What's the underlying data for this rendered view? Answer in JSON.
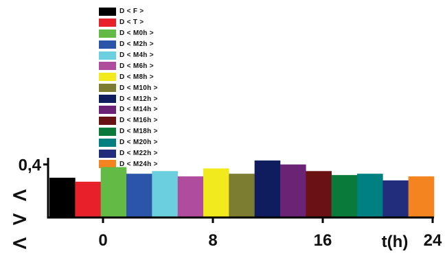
{
  "chart_data": {
    "type": "bar",
    "title": "",
    "xlabel": "t(h)",
    "ylabel_glyphs": [
      "<",
      ">",
      "<"
    ],
    "ytick_labels": [
      "0,4"
    ],
    "xtick_labels": [
      "0",
      "8",
      "16",
      "24"
    ],
    "categories": [
      "D < F >",
      "D < T >",
      "D < M0h >",
      "D < M2h >",
      "D < M4h >",
      "D < M6h >",
      "D < M8h >",
      "D < M10h >",
      "D < M12h >",
      "D < M14h >",
      "D < M16h >",
      "D < M18h >",
      "D < M20h >",
      "D < M22h >",
      "D < M24h >"
    ],
    "values": [
      0.3,
      0.27,
      0.38,
      0.33,
      0.35,
      0.31,
      0.37,
      0.33,
      0.43,
      0.4,
      0.35,
      0.32,
      0.33,
      0.28,
      0.31
    ],
    "colors": [
      "#000000",
      "#e8202a",
      "#63bb46",
      "#2a55a8",
      "#6ccfe0",
      "#b04c9e",
      "#f1ea1c",
      "#7c7d30",
      "#0f1c5e",
      "#6b2376",
      "#6a1114",
      "#0a7a3a",
      "#008081",
      "#222d7b",
      "#f4841f"
    ],
    "ylim": [
      0,
      0.45
    ],
    "xlim": [
      -4,
      24
    ]
  }
}
